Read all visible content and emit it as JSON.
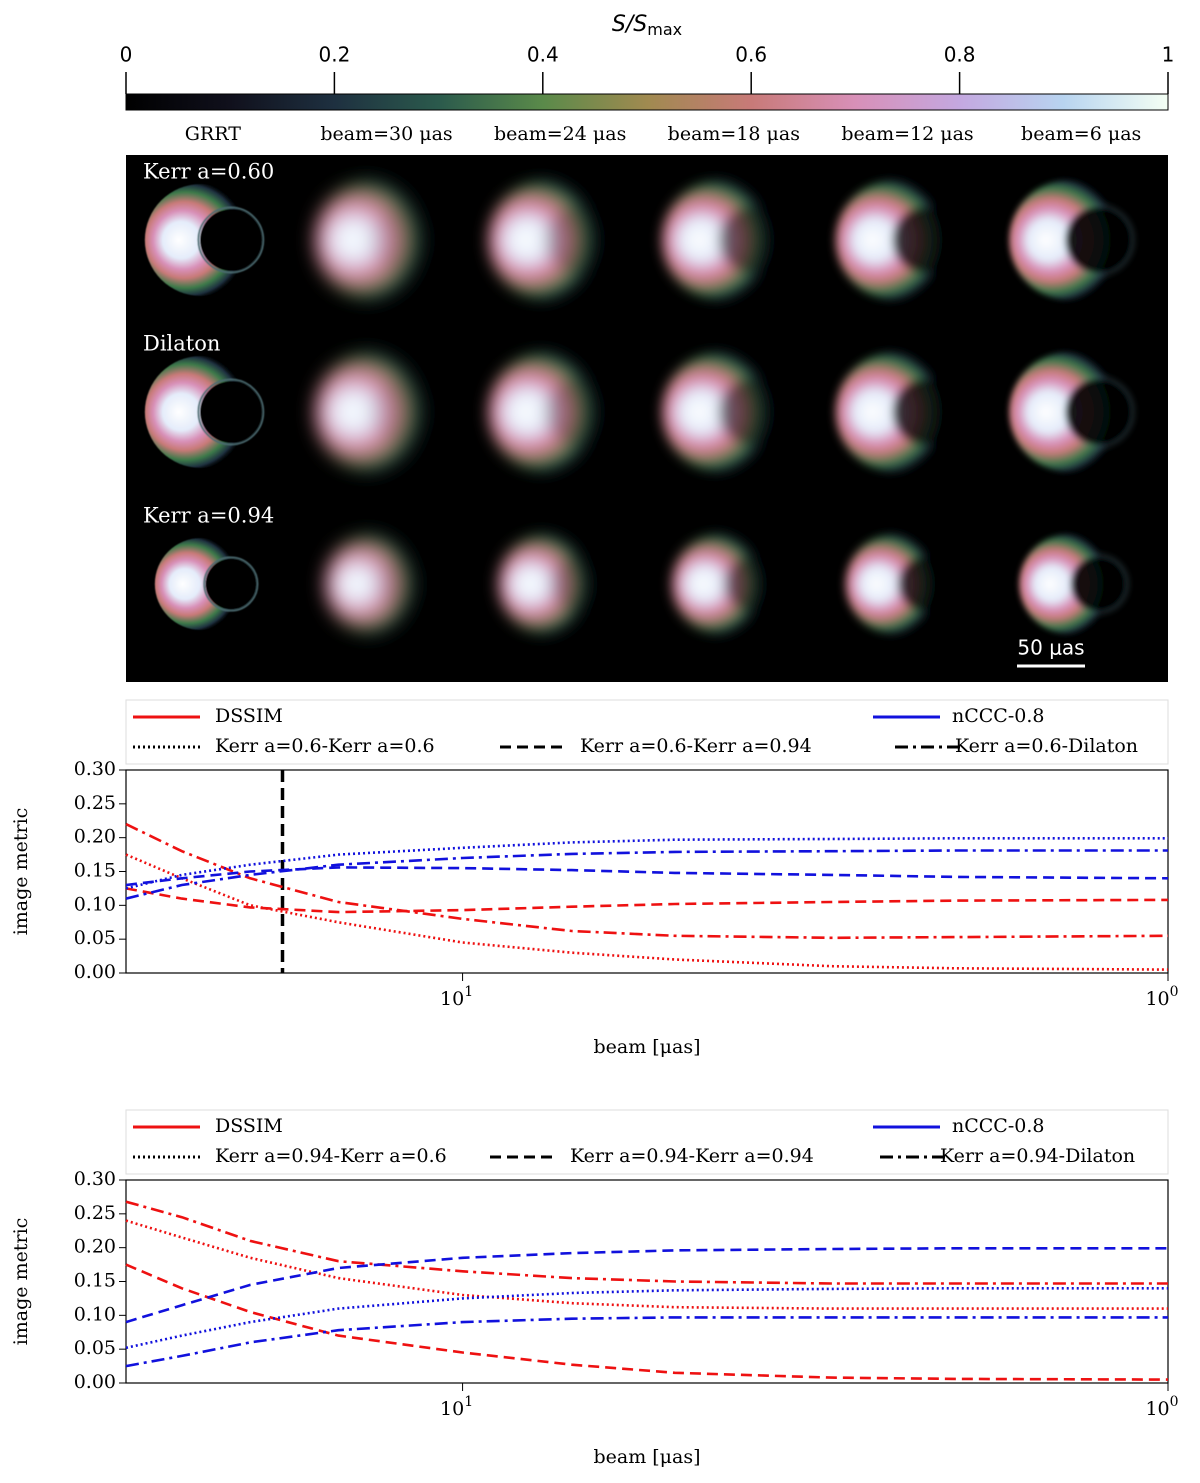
{
  "colorbar": {
    "label": "S/S",
    "label_sub": "max",
    "ticks": [
      0,
      0.2,
      0.4,
      0.6,
      0.8,
      1
    ]
  },
  "panel": {
    "columns": [
      "GRRT",
      "beam=30 μas",
      "beam=24 μas",
      "beam=18 μas",
      "beam=12 μas",
      "beam=6 μas"
    ],
    "rows": [
      "Kerr a=0.60",
      "Dilaton",
      "Kerr a=0.94"
    ],
    "scale_bar": "50 μas"
  },
  "chart_data": [
    {
      "type": "line",
      "log_x": true,
      "xlabel": "beam [μas]",
      "ylabel": "image metric",
      "xlim": [
        30,
        1
      ],
      "ylim": [
        0,
        0.3
      ],
      "xticks": [
        {
          "value": 10,
          "label": "10",
          "exponent": "1"
        },
        {
          "value": 1,
          "label": "10",
          "exponent": "0"
        }
      ],
      "yticks": [
        {
          "value": 0,
          "label": "0.00"
        },
        {
          "value": 0.05,
          "label": "0.05"
        },
        {
          "value": 0.1,
          "label": "0.10"
        },
        {
          "value": 0.15,
          "label": "0.15"
        },
        {
          "value": 0.2,
          "label": "0.20"
        },
        {
          "value": 0.25,
          "label": "0.25"
        },
        {
          "value": 0.3,
          "label": "0.30"
        }
      ],
      "vline": 18,
      "x": [
        30,
        25,
        20,
        15,
        10,
        7,
        5,
        3,
        2,
        1
      ],
      "pairs": [
        {
          "name": "Kerr a=0.6-Kerr a=0.6",
          "dash": "dotted"
        },
        {
          "name": "Kerr a=0.6-Kerr a=0.94",
          "dash": "dashed"
        },
        {
          "name": "Kerr a=0.6-Dilaton",
          "dash": "dashdot"
        }
      ],
      "metrics": [
        {
          "name": "DSSIM",
          "color": "#ee1111",
          "series": [
            {
              "values": [
                0.175,
                0.14,
                0.1,
                0.075,
                0.045,
                0.03,
                0.02,
                0.01,
                0.007,
                0.005
              ]
            },
            {
              "values": [
                0.125,
                0.11,
                0.097,
                0.09,
                0.093,
                0.098,
                0.102,
                0.105,
                0.107,
                0.108
              ]
            },
            {
              "values": [
                0.22,
                0.18,
                0.14,
                0.105,
                0.08,
                0.062,
                0.055,
                0.052,
                0.053,
                0.055
              ]
            }
          ]
        },
        {
          "name": "nCCC-0.8",
          "color": "#1111dd",
          "series": [
            {
              "values": [
                0.125,
                0.145,
                0.16,
                0.175,
                0.185,
                0.193,
                0.197,
                0.198,
                0.199,
                0.199
              ]
            },
            {
              "values": [
                0.13,
                0.14,
                0.15,
                0.156,
                0.155,
                0.152,
                0.148,
                0.145,
                0.142,
                0.14
              ]
            },
            {
              "values": [
                0.11,
                0.13,
                0.145,
                0.16,
                0.17,
                0.176,
                0.179,
                0.18,
                0.181,
                0.181
              ]
            }
          ]
        }
      ]
    },
    {
      "type": "line",
      "log_x": true,
      "xlabel": "beam [μas]",
      "ylabel": "image metric",
      "xlim": [
        30,
        1
      ],
      "ylim": [
        0,
        0.3
      ],
      "xticks": [
        {
          "value": 10,
          "label": "10",
          "exponent": "1"
        },
        {
          "value": 1,
          "label": "10",
          "exponent": "0"
        }
      ],
      "yticks": [
        {
          "value": 0,
          "label": "0.00"
        },
        {
          "value": 0.05,
          "label": "0.05"
        },
        {
          "value": 0.1,
          "label": "0.10"
        },
        {
          "value": 0.15,
          "label": "0.15"
        },
        {
          "value": 0.2,
          "label": "0.20"
        },
        {
          "value": 0.25,
          "label": "0.25"
        },
        {
          "value": 0.3,
          "label": "0.30"
        }
      ],
      "x": [
        30,
        25,
        20,
        15,
        10,
        7,
        5,
        3,
        2,
        1
      ],
      "pairs": [
        {
          "name": "Kerr a=0.94-Kerr a=0.6",
          "dash": "dotted"
        },
        {
          "name": "Kerr a=0.94-Kerr a=0.94",
          "dash": "dashed"
        },
        {
          "name": "Kerr a=0.94-Dilaton",
          "dash": "dashdot"
        }
      ],
      "metrics": [
        {
          "name": "DSSIM",
          "color": "#ee1111",
          "series": [
            {
              "values": [
                0.24,
                0.215,
                0.185,
                0.155,
                0.13,
                0.118,
                0.112,
                0.11,
                0.11,
                0.11
              ]
            },
            {
              "values": [
                0.175,
                0.14,
                0.105,
                0.07,
                0.045,
                0.027,
                0.015,
                0.008,
                0.006,
                0.005
              ]
            },
            {
              "values": [
                0.268,
                0.245,
                0.21,
                0.18,
                0.165,
                0.155,
                0.15,
                0.147,
                0.147,
                0.147
              ]
            }
          ]
        },
        {
          "name": "nCCC-0.8",
          "color": "#1111dd",
          "series": [
            {
              "values": [
                0.052,
                0.07,
                0.09,
                0.11,
                0.125,
                0.133,
                0.137,
                0.139,
                0.14,
                0.14
              ]
            },
            {
              "values": [
                0.09,
                0.115,
                0.145,
                0.17,
                0.185,
                0.192,
                0.196,
                0.198,
                0.199,
                0.199
              ]
            },
            {
              "values": [
                0.025,
                0.04,
                0.06,
                0.078,
                0.09,
                0.095,
                0.097,
                0.097,
                0.097,
                0.097
              ]
            }
          ]
        }
      ]
    }
  ]
}
